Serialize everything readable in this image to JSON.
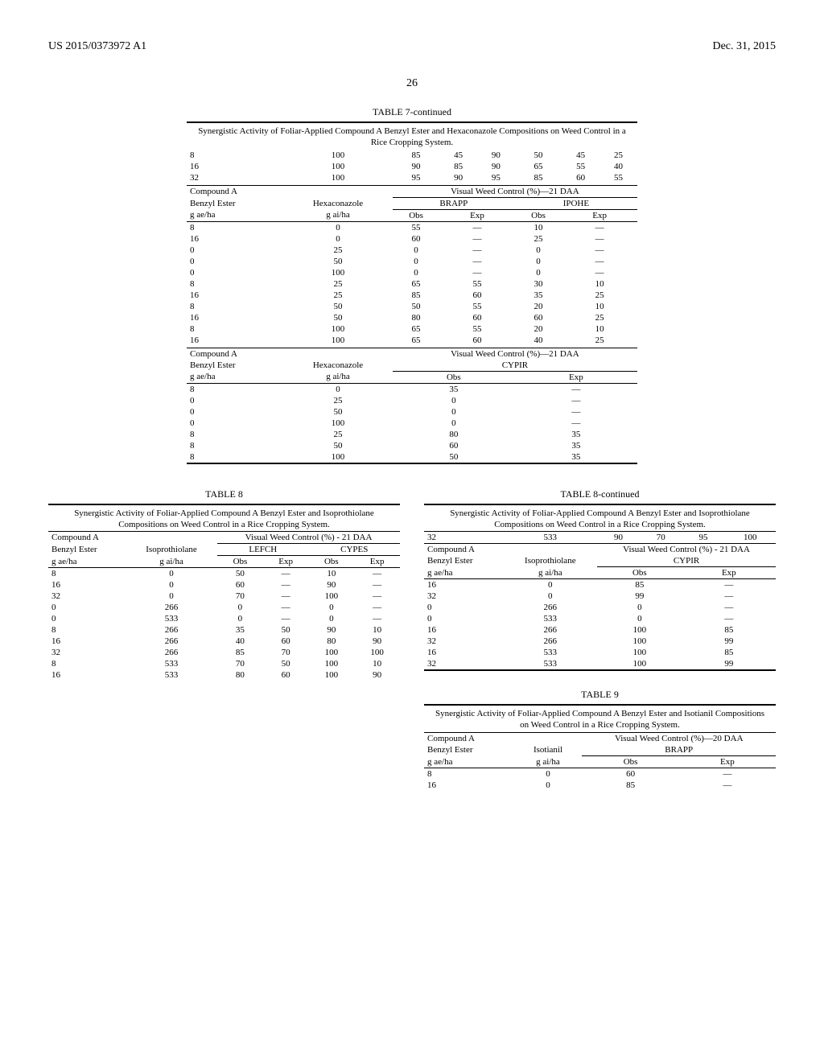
{
  "header": {
    "pub_number": "US 2015/0373972 A1",
    "pub_date": "Dec. 31, 2015",
    "page_number": "26"
  },
  "table7c": {
    "title": "TABLE 7-continued",
    "subtitle": "Synergistic Activity of Foliar-Applied Compound A Benzyl Ester and\nHexaconazole Compositions on Weed Control in a Rice Cropping System.",
    "top_rows": [
      [
        "8",
        "100",
        "85",
        "45",
        "90",
        "50",
        "45",
        "25"
      ],
      [
        "16",
        "100",
        "90",
        "85",
        "90",
        "65",
        "55",
        "40"
      ],
      [
        "32",
        "100",
        "95",
        "90",
        "95",
        "85",
        "60",
        "55"
      ]
    ],
    "mid_header1": "Compound A",
    "mid_header1b": "Visual Weed Control (%)—21 DAA",
    "mid_cols": [
      "Benzyl Ester",
      "Hexaconazole",
      "BRAPP",
      "IPOHE"
    ],
    "mid_units": [
      "g ae/ha",
      "g ai/ha",
      "Obs",
      "Exp",
      "Obs",
      "Exp"
    ],
    "mid_rows": [
      [
        "8",
        "0",
        "55",
        "—",
        "10",
        "—"
      ],
      [
        "16",
        "0",
        "60",
        "—",
        "25",
        "—"
      ],
      [
        "0",
        "25",
        "0",
        "—",
        "0",
        "—"
      ],
      [
        "0",
        "50",
        "0",
        "—",
        "0",
        "—"
      ],
      [
        "0",
        "100",
        "0",
        "—",
        "0",
        "—"
      ],
      [
        "8",
        "25",
        "65",
        "55",
        "30",
        "10"
      ],
      [
        "16",
        "25",
        "85",
        "60",
        "35",
        "25"
      ],
      [
        "8",
        "50",
        "50",
        "55",
        "20",
        "10"
      ],
      [
        "16",
        "50",
        "80",
        "60",
        "60",
        "25"
      ],
      [
        "8",
        "100",
        "65",
        "55",
        "20",
        "10"
      ],
      [
        "16",
        "100",
        "65",
        "60",
        "40",
        "25"
      ]
    ],
    "bot_header_a": "Compound A",
    "bot_header_b": "Benzyl Ester",
    "bot_header_c": "Hexaconazole",
    "bot_header_d": "Visual Weed Control (%)—21 DAA",
    "bot_header_e": "CYPIR",
    "bot_units": [
      "g ae/ha",
      "g ai/ha",
      "Obs",
      "Exp"
    ],
    "bot_rows": [
      [
        "8",
        "0",
        "35",
        "—"
      ],
      [
        "0",
        "25",
        "0",
        "—"
      ],
      [
        "0",
        "50",
        "0",
        "—"
      ],
      [
        "0",
        "100",
        "0",
        "—"
      ],
      [
        "8",
        "25",
        "80",
        "35"
      ],
      [
        "8",
        "50",
        "60",
        "35"
      ],
      [
        "8",
        "100",
        "50",
        "35"
      ]
    ]
  },
  "table8": {
    "title": "TABLE 8",
    "subtitle": "Synergistic Activity of Foliar-Applied Compound\nA Benzyl Ester and Isoprothiolane Compositions\non Weed Control in a Rice Cropping System.",
    "h1a": "Compound A",
    "h1b": "Visual Weed Control (%) - 21 DAA",
    "h2": [
      "Benzyl Ester",
      "Isoprothiolane",
      "LEFCH",
      "CYPES"
    ],
    "h3": [
      "g ae/ha",
      "g ai/ha",
      "Obs",
      "Exp",
      "Obs",
      "Exp"
    ],
    "rows": [
      [
        "8",
        "0",
        "50",
        "—",
        "10",
        "—"
      ],
      [
        "16",
        "0",
        "60",
        "—",
        "90",
        "—"
      ],
      [
        "32",
        "0",
        "70",
        "—",
        "100",
        "—"
      ],
      [
        "0",
        "266",
        "0",
        "—",
        "0",
        "—"
      ],
      [
        "0",
        "533",
        "0",
        "—",
        "0",
        "—"
      ],
      [
        "8",
        "266",
        "35",
        "50",
        "90",
        "10"
      ],
      [
        "16",
        "266",
        "40",
        "60",
        "80",
        "90"
      ],
      [
        "32",
        "266",
        "85",
        "70",
        "100",
        "100"
      ],
      [
        "8",
        "533",
        "70",
        "50",
        "100",
        "10"
      ],
      [
        "16",
        "533",
        "80",
        "60",
        "100",
        "90"
      ]
    ]
  },
  "table8c": {
    "title": "TABLE 8-continued",
    "subtitle": "Synergistic Activity of Foliar-Applied Compound\nA Benzyl Ester and Isoprothiolane Compositions\non Weed Control in a Rice Cropping System.",
    "top_row": [
      "32",
      "533",
      "90",
      "70",
      "95",
      "100"
    ],
    "h1a": "Compound A",
    "h1b": "Benzyl Ester",
    "h1c": "Isoprothiolane",
    "h1d": "Visual Weed Control (%) - 21 DAA",
    "h1e": "CYPIR",
    "h2": [
      "g ae/ha",
      "g ai/ha",
      "Obs",
      "Exp"
    ],
    "rows": [
      [
        "16",
        "0",
        "85",
        "—"
      ],
      [
        "32",
        "0",
        "99",
        "—"
      ],
      [
        "0",
        "266",
        "0",
        "—"
      ],
      [
        "0",
        "533",
        "0",
        "—"
      ],
      [
        "16",
        "266",
        "100",
        "85"
      ],
      [
        "32",
        "266",
        "100",
        "99"
      ],
      [
        "16",
        "533",
        "100",
        "85"
      ],
      [
        "32",
        "533",
        "100",
        "99"
      ]
    ]
  },
  "table9": {
    "title": "TABLE 9",
    "subtitle": "Synergistic Activity of Foliar-Applied Compound A Benzyl Ester and Isotianil\nCompositions on Weed Control in a Rice Cropping System.",
    "h1a": "Compound A",
    "h1b": "Benzyl Ester",
    "h1c": "Isotianil",
    "h1d": "Visual Weed Control (%)—20 DAA",
    "h1e": "BRAPP",
    "h2": [
      "g ae/ha",
      "g ai/ha",
      "Obs",
      "Exp"
    ],
    "rows": [
      [
        "8",
        "0",
        "60",
        "—"
      ],
      [
        "16",
        "0",
        "85",
        "—"
      ]
    ]
  }
}
